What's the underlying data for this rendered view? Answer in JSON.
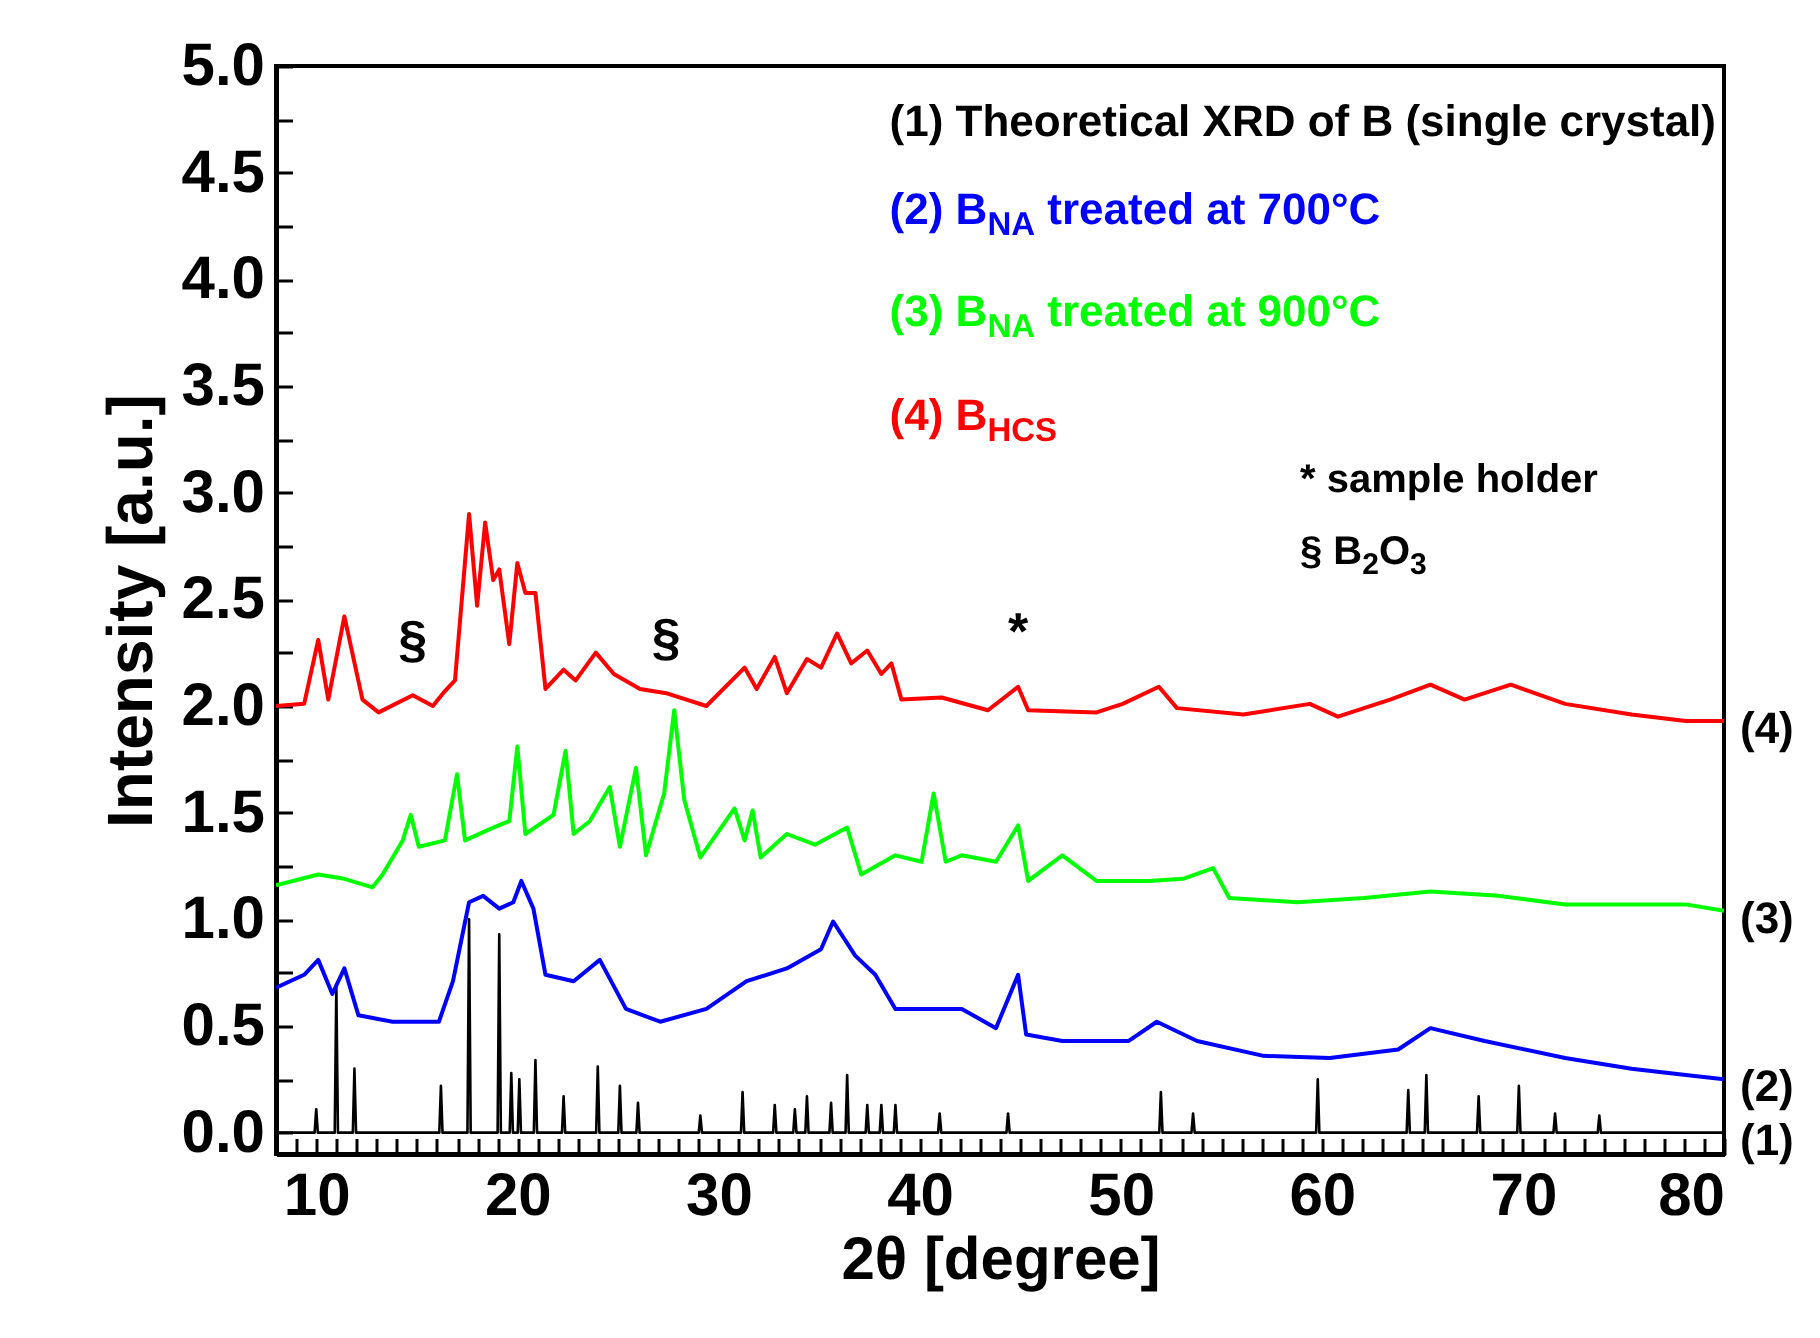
{
  "chart_data": {
    "type": "line",
    "xlabel": "2θ [degree]",
    "ylabel": "Intensity [a.u.]",
    "xlim": [
      8,
      80
    ],
    "ylim": [
      -0.1,
      5.0
    ],
    "xticks": [
      {
        "value": 8,
        "label": null
      },
      {
        "value": 9,
        "label": null
      },
      10,
      {
        "value": 11,
        "label": null
      },
      {
        "value": 12,
        "label": null
      },
      {
        "value": 13,
        "label": null
      },
      {
        "value": 14,
        "label": null
      },
      {
        "value": 15,
        "label": null
      },
      {
        "value": 16,
        "label": null
      },
      {
        "value": 17,
        "label": null
      },
      {
        "value": 18,
        "label": null
      },
      {
        "value": 19,
        "label": null
      },
      20,
      {
        "value": 21,
        "label": null
      },
      {
        "value": 22,
        "label": null
      },
      {
        "value": 23,
        "label": null
      },
      {
        "value": 24,
        "label": null
      },
      {
        "value": 25,
        "label": null
      },
      {
        "value": 26,
        "label": null
      },
      {
        "value": 27,
        "label": null
      },
      {
        "value": 28,
        "label": null
      },
      {
        "value": 29,
        "label": null
      },
      30,
      {
        "value": 31,
        "label": null
      },
      {
        "value": 32,
        "label": null
      },
      {
        "value": 33,
        "label": null
      },
      {
        "value": 34,
        "label": null
      },
      {
        "value": 35,
        "label": null
      },
      {
        "value": 36,
        "label": null
      },
      {
        "value": 37,
        "label": null
      },
      {
        "value": 38,
        "label": null
      },
      {
        "value": 39,
        "label": null
      },
      40,
      {
        "value": 41,
        "label": null
      },
      {
        "value": 42,
        "label": null
      },
      {
        "value": 43,
        "label": null
      },
      {
        "value": 44,
        "label": null
      },
      {
        "value": 45,
        "label": null
      },
      {
        "value": 46,
        "label": null
      },
      {
        "value": 47,
        "label": null
      },
      {
        "value": 48,
        "label": null
      },
      {
        "value": 49,
        "label": null
      },
      50,
      {
        "value": 51,
        "label": null
      },
      {
        "value": 52,
        "label": null
      },
      {
        "value": 53,
        "label": null
      },
      {
        "value": 54,
        "label": null
      },
      {
        "value": 55,
        "label": null
      },
      {
        "value": 56,
        "label": null
      },
      {
        "value": 57,
        "label": null
      },
      {
        "value": 58,
        "label": null
      },
      {
        "value": 59,
        "label": null
      },
      60,
      {
        "value": 61,
        "label": null
      },
      {
        "value": 62,
        "label": null
      },
      {
        "value": 63,
        "label": null
      },
      {
        "value": 64,
        "label": null
      },
      {
        "value": 65,
        "label": null
      },
      {
        "value": 66,
        "label": null
      },
      {
        "value": 67,
        "label": null
      },
      {
        "value": 68,
        "label": null
      },
      {
        "value": 69,
        "label": null
      },
      70,
      {
        "value": 71,
        "label": null
      },
      {
        "value": 72,
        "label": null
      },
      {
        "value": 73,
        "label": null
      },
      {
        "value": 74,
        "label": null
      },
      {
        "value": 75,
        "label": null
      },
      {
        "value": 76,
        "label": null
      },
      {
        "value": 77,
        "label": null
      },
      {
        "value": 78,
        "label": null
      },
      {
        "value": 79,
        "label": null
      },
      80
    ],
    "yticks": [
      {
        "value": 0,
        "label": "0.0"
      },
      {
        "value": 0.25,
        "label": null
      },
      0.5,
      {
        "value": 0.75,
        "label": null
      },
      {
        "value": 1,
        "label": "1.0"
      },
      {
        "value": 1.25,
        "label": null
      },
      1.5,
      {
        "value": 1.75,
        "label": null
      },
      {
        "value": 2,
        "label": "2.0"
      },
      {
        "value": 2.25,
        "label": null
      },
      2.5,
      {
        "value": 2.75,
        "label": null
      },
      {
        "value": 3,
        "label": "3.0"
      },
      {
        "value": 3.25,
        "label": null
      },
      3.5,
      {
        "value": 3.75,
        "label": null
      },
      {
        "value": 4,
        "label": "4.0"
      },
      {
        "value": 4.25,
        "label": null
      },
      4.5,
      {
        "value": 4.75,
        "label": null
      },
      {
        "value": 5,
        "label": "5.0"
      }
    ],
    "legend": "top right",
    "series": [
      {
        "name": "(1) Theoretical XRD of B (single crystal)",
        "color": "#000000",
        "x": [
          8,
          9.92,
          10.0,
          10.08,
          10.92,
          11.0,
          11.08,
          11.82,
          11.9,
          11.98,
          16.12,
          16.2,
          16.28,
          17.52,
          17.6,
          17.68,
          19.02,
          19.1,
          19.18,
          19.62,
          19.7,
          19.78,
          20.02,
          20.1,
          20.18,
          20.82,
          20.9,
          20.98,
          22.22,
          22.3,
          22.38,
          23.92,
          24.0,
          24.08,
          25.02,
          25.1,
          25.18,
          25.92,
          26.0,
          26.08,
          29.02,
          29.1,
          29.18,
          31.12,
          31.2,
          31.28,
          32.72,
          32.8,
          32.88,
          33.72,
          33.8,
          33.88,
          34.32,
          34.4,
          34.48,
          35.52,
          35.6,
          35.68,
          36.32,
          36.4,
          36.48,
          37.32,
          37.4,
          37.48,
          38.02,
          38.1,
          38.18,
          38.72,
          38.8,
          38.88,
          40.92,
          41.0,
          41.08,
          44.32,
          44.4,
          44.48,
          51.92,
          52.0,
          52.08,
          53.52,
          53.6,
          53.68,
          59.72,
          59.8,
          59.88,
          64.22,
          64.3,
          64.38,
          65.12,
          65.2,
          65.28,
          67.72,
          67.8,
          67.88,
          69.72,
          69.8,
          69.88,
          71.52,
          71.6,
          71.68,
          73.72,
          73.8,
          73.88,
          80
        ],
        "values": [
          0,
          0,
          0.11,
          0,
          0,
          0.69,
          0,
          0,
          0.3,
          0,
          0,
          0.22,
          0,
          0,
          1.0,
          0,
          0,
          0.93,
          0,
          0,
          0.28,
          0,
          0,
          0.25,
          0,
          0,
          0.34,
          0,
          0,
          0.17,
          0,
          0,
          0.31,
          0,
          0,
          0.22,
          0,
          0,
          0.14,
          0,
          0,
          0.08,
          0,
          0,
          0.19,
          0,
          0,
          0.13,
          0,
          0,
          0.11,
          0,
          0,
          0.17,
          0,
          0,
          0.14,
          0,
          0,
          0.27,
          0,
          0,
          0.13,
          0,
          0,
          0.13,
          0,
          0,
          0.13,
          0,
          0,
          0.09,
          0,
          0,
          0.09,
          0,
          0,
          0.19,
          0,
          0,
          0.09,
          0,
          0,
          0.25,
          0,
          0,
          0.2,
          0,
          0,
          0.27,
          0,
          0,
          0.17,
          0,
          0,
          0.22,
          0,
          0,
          0.09,
          0,
          0,
          0.08,
          0,
          0
        ]
      },
      {
        "name": "(2) B$_{NA}$ treated at 700°C",
        "color": "#0000ff",
        "x": [
          8,
          9.4,
          10.1,
          10.8,
          11.4,
          12.1,
          13.8,
          16.1,
          16.8,
          17.6,
          18.3,
          19.1,
          19.8,
          20.2,
          20.8,
          21.4,
          22.8,
          24.1,
          25.4,
          27.1,
          29.4,
          31.4,
          33.4,
          35.1,
          35.7,
          36.8,
          37.8,
          38.8,
          40.8,
          42.1,
          43.8,
          44.9,
          45.3,
          47.1,
          50.4,
          51.8,
          53.8,
          57.1,
          60.4,
          63.8,
          65.4,
          68.1,
          72.1,
          75.4,
          78.1,
          80
        ],
        "values": [
          0.68,
          0.74,
          0.81,
          0.65,
          0.77,
          0.55,
          0.52,
          0.52,
          0.71,
          1.08,
          1.11,
          1.05,
          1.08,
          1.18,
          1.05,
          0.74,
          0.71,
          0.81,
          0.58,
          0.52,
          0.58,
          0.71,
          0.77,
          0.86,
          0.99,
          0.83,
          0.74,
          0.58,
          0.58,
          0.58,
          0.49,
          0.74,
          0.46,
          0.43,
          0.43,
          0.52,
          0.43,
          0.36,
          0.35,
          0.39,
          0.49,
          0.43,
          0.35,
          0.3,
          0.27,
          0.25
        ]
      },
      {
        "name": "(3) B$_{NA}$ treated at 900°C",
        "color": "#00ff00",
        "x": [
          8,
          10.1,
          11.4,
          12.8,
          13.3,
          14.3,
          14.7,
          15.1,
          16.4,
          17.0,
          17.4,
          18.8,
          19.6,
          20.0,
          20.4,
          21.8,
          22.4,
          22.8,
          23.6,
          24.6,
          25.1,
          25.9,
          26.4,
          27.3,
          27.8,
          28.3,
          29.1,
          30.8,
          31.3,
          31.7,
          32.1,
          33.4,
          34.8,
          36.4,
          37.1,
          38.8,
          40.1,
          40.7,
          41.3,
          42.1,
          43.8,
          44.9,
          45.4,
          47.1,
          48.8,
          51.4,
          53.1,
          54.6,
          55.4,
          58.8,
          62.1,
          65.4,
          68.8,
          72.1,
          75.4,
          78.1,
          80
        ],
        "values": [
          1.16,
          1.21,
          1.19,
          1.15,
          1.21,
          1.37,
          1.49,
          1.34,
          1.37,
          1.68,
          1.37,
          1.43,
          1.46,
          1.81,
          1.4,
          1.49,
          1.79,
          1.4,
          1.46,
          1.62,
          1.34,
          1.71,
          1.3,
          1.59,
          1.98,
          1.56,
          1.29,
          1.52,
          1.37,
          1.51,
          1.29,
          1.4,
          1.35,
          1.43,
          1.21,
          1.3,
          1.27,
          1.59,
          1.27,
          1.3,
          1.27,
          1.44,
          1.18,
          1.3,
          1.18,
          1.18,
          1.19,
          1.24,
          1.1,
          1.08,
          1.1,
          1.13,
          1.11,
          1.07,
          1.07,
          1.07,
          1.04
        ]
      },
      {
        "name": "(4) B$_{HCS}$",
        "color": "#ff0000",
        "x": [
          8,
          9.4,
          10.1,
          10.6,
          11.4,
          12.3,
          13.1,
          14.8,
          15.8,
          16.4,
          16.9,
          17.6,
          18.0,
          18.4,
          18.8,
          19.1,
          19.6,
          20.0,
          20.4,
          20.9,
          21.4,
          22.3,
          22.9,
          23.9,
          24.8,
          26.1,
          27.4,
          29.4,
          31.3,
          31.9,
          32.8,
          33.4,
          34.4,
          35.1,
          35.9,
          36.6,
          37.4,
          38.1,
          38.6,
          39.1,
          41.1,
          43.4,
          44.9,
          45.4,
          48.8,
          50.1,
          51.9,
          52.8,
          56.1,
          59.4,
          60.8,
          63.4,
          65.4,
          67.1,
          69.4,
          72.1,
          75.4,
          78.1,
          80
        ],
        "values": [
          2.0,
          2.01,
          2.31,
          2.03,
          2.42,
          2.03,
          1.97,
          2.05,
          2.0,
          2.07,
          2.12,
          2.9,
          2.47,
          2.86,
          2.59,
          2.64,
          2.29,
          2.67,
          2.53,
          2.53,
          2.08,
          2.17,
          2.12,
          2.25,
          2.15,
          2.08,
          2.06,
          2.0,
          2.18,
          2.08,
          2.23,
          2.06,
          2.22,
          2.18,
          2.34,
          2.2,
          2.26,
          2.15,
          2.2,
          2.03,
          2.04,
          1.98,
          2.09,
          1.98,
          1.97,
          2.01,
          2.09,
          1.99,
          1.96,
          2.01,
          1.95,
          2.03,
          2.1,
          2.03,
          2.1,
          2.01,
          1.96,
          1.93,
          1.93
        ]
      }
    ],
    "annotations": [
      {
        "text": "§",
        "x": 14.8,
        "y": 2.05
      },
      {
        "text": "§",
        "x": 27.4,
        "y": 2.06
      },
      {
        "text": "*",
        "x": 44.9,
        "y": 2.09
      },
      {
        "text": "(4)",
        "x": 80,
        "y": 1.93
      },
      {
        "text": "(3)",
        "x": 80,
        "y": 1.04
      },
      {
        "text": "(2)",
        "x": 80,
        "y": 0.25
      },
      {
        "text": "(1)",
        "x": 80,
        "y": 0
      },
      "* sample holder",
      "§ B$_{2}$O$_{3}$"
    ]
  }
}
